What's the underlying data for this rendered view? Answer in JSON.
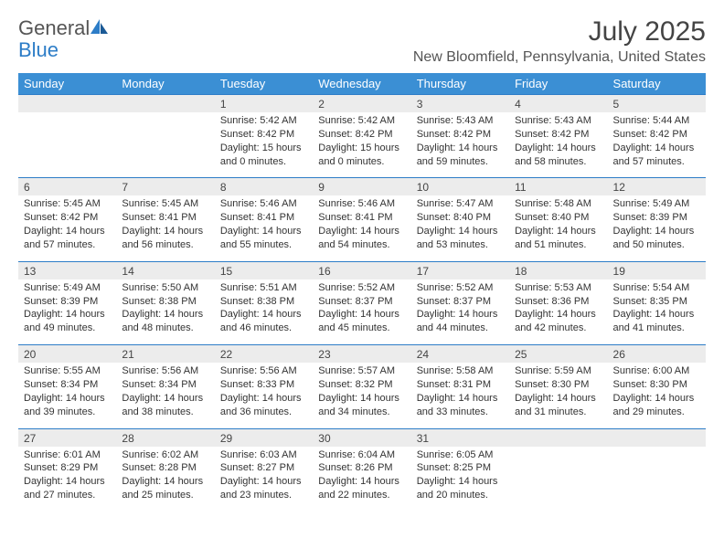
{
  "logo": {
    "text1": "General",
    "text2": "Blue"
  },
  "title": "July 2025",
  "location": "New Bloomfield, Pennsylvania, United States",
  "colors": {
    "header_bg": "#3b8fd4",
    "header_text": "#ffffff",
    "row_border": "#2d7dc7",
    "daynum_bg": "#ececec",
    "logo_gray": "#555555",
    "logo_blue": "#2d7dc7"
  },
  "day_headers": [
    "Sunday",
    "Monday",
    "Tuesday",
    "Wednesday",
    "Thursday",
    "Friday",
    "Saturday"
  ],
  "weeks": [
    [
      null,
      null,
      {
        "n": "1",
        "sr": "Sunrise: 5:42 AM",
        "ss": "Sunset: 8:42 PM",
        "dl": "Daylight: 15 hours and 0 minutes."
      },
      {
        "n": "2",
        "sr": "Sunrise: 5:42 AM",
        "ss": "Sunset: 8:42 PM",
        "dl": "Daylight: 15 hours and 0 minutes."
      },
      {
        "n": "3",
        "sr": "Sunrise: 5:43 AM",
        "ss": "Sunset: 8:42 PM",
        "dl": "Daylight: 14 hours and 59 minutes."
      },
      {
        "n": "4",
        "sr": "Sunrise: 5:43 AM",
        "ss": "Sunset: 8:42 PM",
        "dl": "Daylight: 14 hours and 58 minutes."
      },
      {
        "n": "5",
        "sr": "Sunrise: 5:44 AM",
        "ss": "Sunset: 8:42 PM",
        "dl": "Daylight: 14 hours and 57 minutes."
      }
    ],
    [
      {
        "n": "6",
        "sr": "Sunrise: 5:45 AM",
        "ss": "Sunset: 8:42 PM",
        "dl": "Daylight: 14 hours and 57 minutes."
      },
      {
        "n": "7",
        "sr": "Sunrise: 5:45 AM",
        "ss": "Sunset: 8:41 PM",
        "dl": "Daylight: 14 hours and 56 minutes."
      },
      {
        "n": "8",
        "sr": "Sunrise: 5:46 AM",
        "ss": "Sunset: 8:41 PM",
        "dl": "Daylight: 14 hours and 55 minutes."
      },
      {
        "n": "9",
        "sr": "Sunrise: 5:46 AM",
        "ss": "Sunset: 8:41 PM",
        "dl": "Daylight: 14 hours and 54 minutes."
      },
      {
        "n": "10",
        "sr": "Sunrise: 5:47 AM",
        "ss": "Sunset: 8:40 PM",
        "dl": "Daylight: 14 hours and 53 minutes."
      },
      {
        "n": "11",
        "sr": "Sunrise: 5:48 AM",
        "ss": "Sunset: 8:40 PM",
        "dl": "Daylight: 14 hours and 51 minutes."
      },
      {
        "n": "12",
        "sr": "Sunrise: 5:49 AM",
        "ss": "Sunset: 8:39 PM",
        "dl": "Daylight: 14 hours and 50 minutes."
      }
    ],
    [
      {
        "n": "13",
        "sr": "Sunrise: 5:49 AM",
        "ss": "Sunset: 8:39 PM",
        "dl": "Daylight: 14 hours and 49 minutes."
      },
      {
        "n": "14",
        "sr": "Sunrise: 5:50 AM",
        "ss": "Sunset: 8:38 PM",
        "dl": "Daylight: 14 hours and 48 minutes."
      },
      {
        "n": "15",
        "sr": "Sunrise: 5:51 AM",
        "ss": "Sunset: 8:38 PM",
        "dl": "Daylight: 14 hours and 46 minutes."
      },
      {
        "n": "16",
        "sr": "Sunrise: 5:52 AM",
        "ss": "Sunset: 8:37 PM",
        "dl": "Daylight: 14 hours and 45 minutes."
      },
      {
        "n": "17",
        "sr": "Sunrise: 5:52 AM",
        "ss": "Sunset: 8:37 PM",
        "dl": "Daylight: 14 hours and 44 minutes."
      },
      {
        "n": "18",
        "sr": "Sunrise: 5:53 AM",
        "ss": "Sunset: 8:36 PM",
        "dl": "Daylight: 14 hours and 42 minutes."
      },
      {
        "n": "19",
        "sr": "Sunrise: 5:54 AM",
        "ss": "Sunset: 8:35 PM",
        "dl": "Daylight: 14 hours and 41 minutes."
      }
    ],
    [
      {
        "n": "20",
        "sr": "Sunrise: 5:55 AM",
        "ss": "Sunset: 8:34 PM",
        "dl": "Daylight: 14 hours and 39 minutes."
      },
      {
        "n": "21",
        "sr": "Sunrise: 5:56 AM",
        "ss": "Sunset: 8:34 PM",
        "dl": "Daylight: 14 hours and 38 minutes."
      },
      {
        "n": "22",
        "sr": "Sunrise: 5:56 AM",
        "ss": "Sunset: 8:33 PM",
        "dl": "Daylight: 14 hours and 36 minutes."
      },
      {
        "n": "23",
        "sr": "Sunrise: 5:57 AM",
        "ss": "Sunset: 8:32 PM",
        "dl": "Daylight: 14 hours and 34 minutes."
      },
      {
        "n": "24",
        "sr": "Sunrise: 5:58 AM",
        "ss": "Sunset: 8:31 PM",
        "dl": "Daylight: 14 hours and 33 minutes."
      },
      {
        "n": "25",
        "sr": "Sunrise: 5:59 AM",
        "ss": "Sunset: 8:30 PM",
        "dl": "Daylight: 14 hours and 31 minutes."
      },
      {
        "n": "26",
        "sr": "Sunrise: 6:00 AM",
        "ss": "Sunset: 8:30 PM",
        "dl": "Daylight: 14 hours and 29 minutes."
      }
    ],
    [
      {
        "n": "27",
        "sr": "Sunrise: 6:01 AM",
        "ss": "Sunset: 8:29 PM",
        "dl": "Daylight: 14 hours and 27 minutes."
      },
      {
        "n": "28",
        "sr": "Sunrise: 6:02 AM",
        "ss": "Sunset: 8:28 PM",
        "dl": "Daylight: 14 hours and 25 minutes."
      },
      {
        "n": "29",
        "sr": "Sunrise: 6:03 AM",
        "ss": "Sunset: 8:27 PM",
        "dl": "Daylight: 14 hours and 23 minutes."
      },
      {
        "n": "30",
        "sr": "Sunrise: 6:04 AM",
        "ss": "Sunset: 8:26 PM",
        "dl": "Daylight: 14 hours and 22 minutes."
      },
      {
        "n": "31",
        "sr": "Sunrise: 6:05 AM",
        "ss": "Sunset: 8:25 PM",
        "dl": "Daylight: 14 hours and 20 minutes."
      },
      null,
      null
    ]
  ]
}
